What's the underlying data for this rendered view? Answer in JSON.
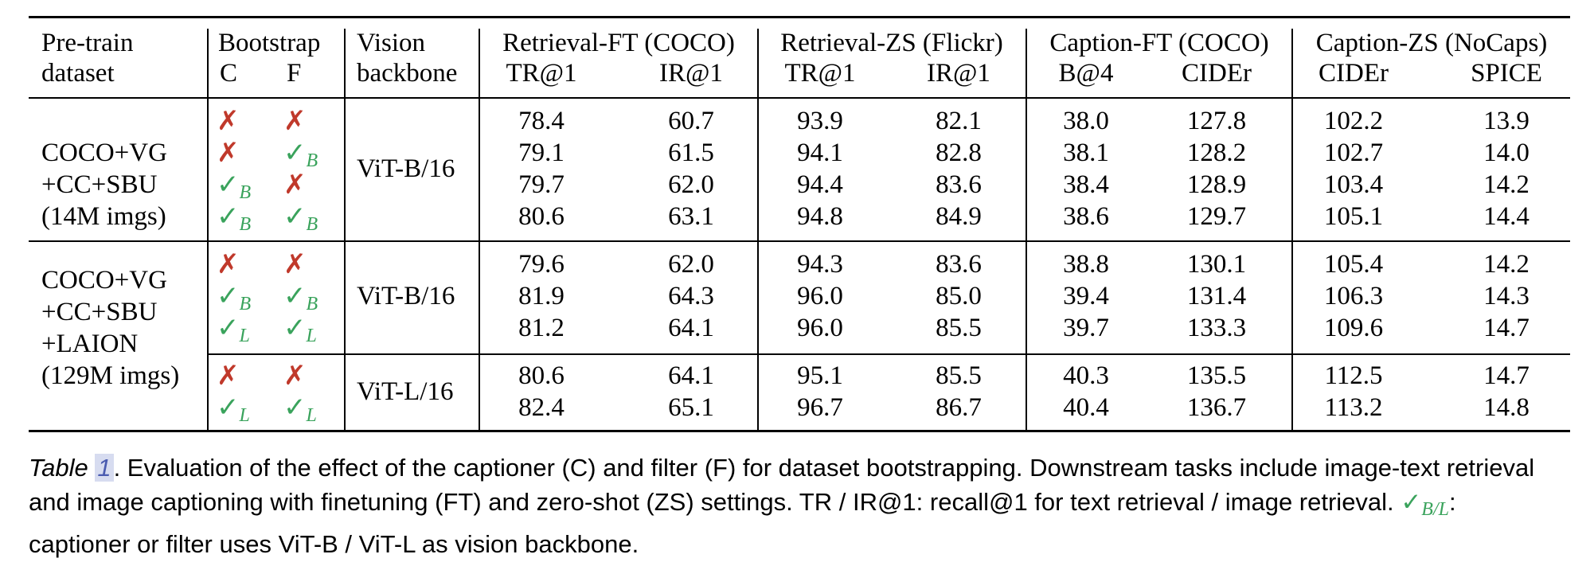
{
  "header": {
    "pretrain": [
      "Pre-train",
      "dataset"
    ],
    "bootstrap": "Bootstrap",
    "boot_c": "C",
    "boot_f": "F",
    "vision": [
      "Vision",
      "backbone"
    ],
    "groups": [
      "Retrieval-FT (COCO)",
      "Retrieval-ZS (Flickr)",
      "Caption-FT (COCO)",
      "Caption-ZS (NoCaps)"
    ],
    "metrics": [
      "TR@1",
      "IR@1",
      "TR@1",
      "IR@1",
      "B@4",
      "CIDEr",
      "CIDEr",
      "SPICE"
    ]
  },
  "marks": {
    "cross": "✗",
    "check": "✓",
    "sub_b": "B",
    "sub_l": "L"
  },
  "dataset_groups": [
    {
      "lines": [
        "COCO+VG",
        "+CC+SBU",
        "(14M imgs)"
      ]
    },
    {
      "lines": [
        "COCO+VG",
        "+CC+SBU",
        "+LAION",
        "(129M imgs)"
      ]
    }
  ],
  "backbones": [
    "ViT-B/16",
    "ViT-B/16",
    "ViT-L/16"
  ],
  "rows": [
    {
      "c": "x",
      "f": "x",
      "values": [
        "78.4",
        "60.7",
        "93.9",
        "82.1",
        "38.0",
        "127.8",
        "102.2",
        "13.9"
      ]
    },
    {
      "c": "x",
      "f": "B",
      "values": [
        "79.1",
        "61.5",
        "94.1",
        "82.8",
        "38.1",
        "128.2",
        "102.7",
        "14.0"
      ]
    },
    {
      "c": "B",
      "f": "x",
      "values": [
        "79.7",
        "62.0",
        "94.4",
        "83.6",
        "38.4",
        "128.9",
        "103.4",
        "14.2"
      ]
    },
    {
      "c": "B",
      "f": "B",
      "values": [
        "80.6",
        "63.1",
        "94.8",
        "84.9",
        "38.6",
        "129.7",
        "105.1",
        "14.4"
      ]
    },
    {
      "c": "x",
      "f": "x",
      "values": [
        "79.6",
        "62.0",
        "94.3",
        "83.6",
        "38.8",
        "130.1",
        "105.4",
        "14.2"
      ]
    },
    {
      "c": "B",
      "f": "B",
      "values": [
        "81.9",
        "64.3",
        "96.0",
        "85.0",
        "39.4",
        "131.4",
        "106.3",
        "14.3"
      ]
    },
    {
      "c": "L",
      "f": "L",
      "values": [
        "81.2",
        "64.1",
        "96.0",
        "85.5",
        "39.7",
        "133.3",
        "109.6",
        "14.7"
      ]
    },
    {
      "c": "x",
      "f": "x",
      "values": [
        "80.6",
        "64.1",
        "95.1",
        "85.5",
        "40.3",
        "135.5",
        "112.5",
        "14.7"
      ]
    },
    {
      "c": "L",
      "f": "L",
      "values": [
        "82.4",
        "65.1",
        "96.7",
        "86.7",
        "40.4",
        "136.7",
        "113.2",
        "14.8"
      ]
    }
  ],
  "caption": {
    "label": "Table",
    "number": "1",
    "part1": ". Evaluation of the effect of the captioner (C) and filter (F) for dataset bootstrapping. Downstream tasks include image-text retrieval",
    "part2": "and image captioning with finetuning (FT) and zero-shot (ZS) settings. TR / IR@1: recall@1 for text retrieval / image retrieval.",
    "check_sub": "B/L",
    "part3": ":",
    "part4": "captioner or filter uses ViT-B / ViT-L as vision backbone."
  }
}
